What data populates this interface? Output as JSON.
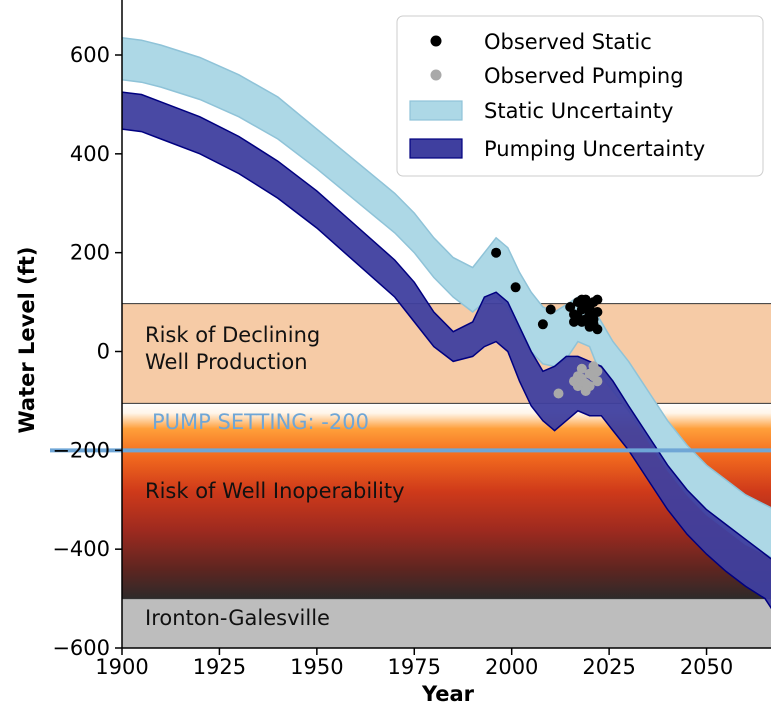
{
  "chart_data": {
    "type": "area",
    "title": "",
    "xlabel": "Year",
    "ylabel": "Water Level (ft)",
    "xlim": [
      1900,
      2070
    ],
    "ylim": [
      -600,
      700
    ],
    "xticks": [
      1900,
      1925,
      1950,
      1975,
      2000,
      2025,
      2050
    ],
    "yticks": [
      -600,
      -400,
      -200,
      0,
      200,
      400,
      600
    ],
    "grid": false,
    "legend_position": "top-right",
    "zones": [
      {
        "name": "Risk of Declining Well Production",
        "label_lines": [
          "Risk of Declining",
          "Well Production"
        ],
        "from": -105,
        "to": 97,
        "color": "#f6cba6"
      },
      {
        "name": "Risk of Well Inoperability",
        "label_lines": [
          "Risk of Well Inoperability"
        ],
        "from": -500,
        "to": -105,
        "color": "#d93a1f"
      },
      {
        "name": "Ironton-Galesville",
        "label_lines": [
          "Ironton-Galesville"
        ],
        "from": -600,
        "to": -500,
        "color": "#bdbdbd"
      }
    ],
    "pump_setting": {
      "label": "PUMP SETTING: -200",
      "value": -200,
      "color": "#6fa6d6"
    },
    "series": [
      {
        "name": "Static Uncertainty",
        "kind": "band",
        "fill": "#add8e6",
        "stroke": "#8fc3d8",
        "x": [
          1900,
          1905,
          1910,
          1920,
          1930,
          1940,
          1950,
          1960,
          1970,
          1975,
          1980,
          1985,
          1990,
          1993,
          1996,
          1999,
          2002,
          2005,
          2008,
          2011,
          2014,
          2017,
          2020,
          2023,
          2026,
          2030,
          2035,
          2040,
          2045,
          2050,
          2055,
          2060,
          2065,
          2070
        ],
        "lower": [
          550,
          545,
          535,
          510,
          475,
          430,
          370,
          305,
          240,
          200,
          150,
          110,
          80,
          100,
          110,
          90,
          40,
          0,
          -25,
          -30,
          -15,
          20,
          10,
          -50,
          -80,
          -120,
          -180,
          -240,
          -290,
          -330,
          -360,
          -390,
          -410,
          -430
        ],
        "upper": [
          635,
          630,
          620,
          595,
          560,
          515,
          450,
          385,
          320,
          280,
          230,
          190,
          170,
          200,
          230,
          210,
          160,
          120,
          90,
          80,
          95,
          110,
          100,
          60,
          20,
          -20,
          -80,
          -140,
          -190,
          -230,
          -260,
          -290,
          -310,
          -330
        ]
      },
      {
        "name": "Pumping Uncertainty",
        "kind": "band",
        "fill": "#3f3f9f",
        "stroke": "#000080",
        "x": [
          1900,
          1905,
          1910,
          1920,
          1930,
          1940,
          1950,
          1960,
          1970,
          1975,
          1980,
          1985,
          1990,
          1993,
          1996,
          1999,
          2002,
          2005,
          2008,
          2011,
          2014,
          2017,
          2020,
          2023,
          2026,
          2030,
          2035,
          2040,
          2045,
          2050,
          2055,
          2060,
          2065,
          2070
        ],
        "lower": [
          450,
          445,
          430,
          400,
          360,
          310,
          250,
          180,
          110,
          60,
          10,
          -20,
          -10,
          10,
          20,
          0,
          -60,
          -110,
          -140,
          -160,
          -140,
          -120,
          -130,
          -130,
          -160,
          -200,
          -260,
          -320,
          -370,
          -410,
          -445,
          -475,
          -500,
          -560
        ],
        "upper": [
          525,
          520,
          505,
          475,
          435,
          385,
          325,
          255,
          185,
          140,
          80,
          40,
          60,
          110,
          120,
          100,
          50,
          0,
          -40,
          -30,
          -10,
          -10,
          -20,
          -30,
          -60,
          -110,
          -170,
          -230,
          -280,
          -320,
          -350,
          -380,
          -410,
          -440
        ]
      },
      {
        "name": "Observed Static",
        "kind": "points",
        "color": "#000000",
        "x": [
          1996,
          2001,
          2008,
          2010,
          2015,
          2016,
          2017,
          2017,
          2018,
          2018,
          2019,
          2019,
          2020,
          2020,
          2021,
          2021,
          2022,
          2022,
          2016,
          2018,
          2020,
          2022,
          2019,
          2021
        ],
        "y": [
          200,
          130,
          55,
          85,
          90,
          75,
          70,
          100,
          60,
          85,
          95,
          105,
          50,
          75,
          65,
          100,
          80,
          45,
          60,
          105,
          90,
          105,
          65,
          55
        ]
      },
      {
        "name": "Observed Pumping",
        "kind": "points",
        "color": "#a9a9a9",
        "x": [
          2012,
          2016,
          2017,
          2018,
          2018,
          2019,
          2020,
          2020,
          2021,
          2021,
          2022,
          2017,
          2019,
          2022
        ],
        "y": [
          -85,
          -60,
          -70,
          -55,
          -35,
          -65,
          -45,
          -70,
          -50,
          -30,
          -60,
          -50,
          -80,
          -40
        ]
      }
    ]
  }
}
